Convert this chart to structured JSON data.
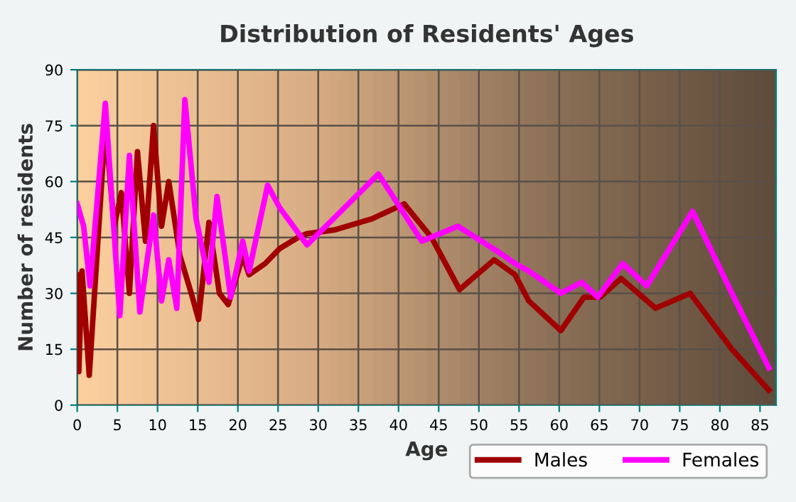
{
  "chart_data": {
    "type": "line",
    "title": "Distribution of Residents' Ages",
    "xlabel": "Age",
    "ylabel": "Number of residents",
    "xlim": [
      0,
      87
    ],
    "ylim": [
      0,
      90
    ],
    "xticks": [
      0,
      5,
      10,
      15,
      20,
      25,
      30,
      35,
      40,
      45,
      50,
      55,
      60,
      65,
      70,
      75,
      80,
      85
    ],
    "yticks": [
      0,
      15,
      30,
      45,
      60,
      75,
      90
    ],
    "grid": true,
    "legend": "bottom right",
    "line_style": "solid",
    "series": [
      {
        "name": "Males",
        "color": "#a00000",
        "x": [
          0,
          0.2,
          0.6,
          1.5,
          3.5,
          4.6,
          5.5,
          6.5,
          7.5,
          8.5,
          9.5,
          10.5,
          11.4,
          12.8,
          14.2,
          15.1,
          16.4,
          17.7,
          18.8,
          20.6,
          21.4,
          23.4,
          25.2,
          27.5,
          28.6,
          32,
          36.7,
          40.7,
          44.1,
          47.6,
          51.9,
          54.5,
          56.2,
          60.2,
          63.1,
          65.1,
          67.7,
          72,
          76.3,
          81.5,
          86.1
        ],
        "values": [
          35,
          9,
          36,
          8,
          75,
          48,
          57,
          30,
          68,
          44,
          75,
          48,
          60,
          40,
          30,
          23,
          49,
          30,
          27,
          40,
          35,
          38,
          42,
          45,
          46,
          47,
          50,
          54,
          45,
          31,
          39,
          35,
          28,
          20,
          29,
          29,
          34,
          26,
          30,
          15,
          4
        ]
      },
      {
        "name": "Females",
        "color": "#ff00ff",
        "x": [
          0,
          0.8,
          1.6,
          3.5,
          5.3,
          6.5,
          7.8,
          9.5,
          10.5,
          11.4,
          12.4,
          13.4,
          14.8,
          16.4,
          17.4,
          19.1,
          20.6,
          21.4,
          23.7,
          25.2,
          28.6,
          37.5,
          42.9,
          47.4,
          52.5,
          54.5,
          56.2,
          60.2,
          62.8,
          64.8,
          67.9,
          70.9,
          76.6,
          81.5,
          86.1
        ],
        "values": [
          54,
          48,
          32,
          81,
          24,
          67,
          25,
          51,
          28,
          39,
          26,
          82,
          50,
          33,
          56,
          29,
          44,
          36,
          59,
          53,
          43,
          62,
          44,
          48,
          41,
          38,
          36,
          30,
          33,
          29,
          38,
          32,
          52,
          30,
          10
        ]
      }
    ]
  }
}
